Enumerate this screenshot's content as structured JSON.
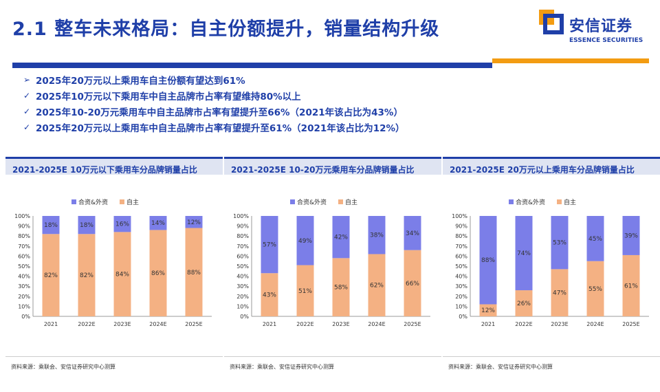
{
  "header": {
    "title": "2.1 整车未来格局：自主份额提升，销量结构升级",
    "logo_cn": "安信证券",
    "logo_en": "ESSENCE SECURITIES"
  },
  "bullets": [
    {
      "marker": "➢",
      "text": "2025年20万元以上乘用车自主份额有望达到61%"
    },
    {
      "marker": "✓",
      "text": "2025年10万元以下乘用车中自主品牌市占率有望维持80%以上"
    },
    {
      "marker": "✓",
      "text": "2025年10-20万元乘用车中自主品牌市占率有望提升至66%（2021年该占比为43%）"
    },
    {
      "marker": "✓",
      "text": "2025年20万元以上乘用车中自主品牌市占率有望提升至61%（2021年该占比为12%）"
    }
  ],
  "colors": {
    "jv": "#7b7ee8",
    "domestic": "#f4b183",
    "brand": "#1f3fa8",
    "accent": "#f39c12"
  },
  "panels": [
    {
      "title": "2021-2025E 10万元以下乘用车分品牌销量占比",
      "source": "资料来源：乘联会、安信证券研究中心测算"
    },
    {
      "title": "2021-2025E 10-20万元乘用车分品牌销量占比",
      "source": "资料来源：乘联会、安信证券研究中心测算"
    },
    {
      "title": "2021-2025E 20万元以上乘用车分品牌销量占比",
      "source": "资料来源：乘联会、安信证券研究中心测算"
    }
  ],
  "chart_data": [
    {
      "type": "bar",
      "stacked": true,
      "categories": [
        "2021",
        "2022E",
        "2023E",
        "2024E",
        "2025E"
      ],
      "series": [
        {
          "name": "自主",
          "values": [
            82,
            82,
            84,
            86,
            88
          ]
        },
        {
          "name": "合资&外资",
          "values": [
            18,
            18,
            16,
            14,
            12
          ]
        }
      ],
      "legend": [
        "合资&外资",
        "自主"
      ],
      "ylim": [
        0,
        100
      ],
      "yticks": [
        "0%",
        "10%",
        "20%",
        "30%",
        "40%",
        "50%",
        "60%",
        "70%",
        "80%",
        "90%",
        "100%"
      ],
      "legend_position": "top"
    },
    {
      "type": "bar",
      "stacked": true,
      "categories": [
        "2021",
        "2022E",
        "2023E",
        "2024E",
        "2025E"
      ],
      "series": [
        {
          "name": "自主",
          "values": [
            43,
            51,
            58,
            62,
            66
          ]
        },
        {
          "name": "合资&外资",
          "values": [
            57,
            49,
            42,
            38,
            34
          ]
        }
      ],
      "legend": [
        "合资&外资",
        "自主"
      ],
      "ylim": [
        0,
        100
      ],
      "yticks": [
        "0%",
        "10%",
        "20%",
        "30%",
        "40%",
        "50%",
        "60%",
        "70%",
        "80%",
        "90%",
        "100%"
      ],
      "legend_position": "top"
    },
    {
      "type": "bar",
      "stacked": true,
      "categories": [
        "2021",
        "2022E",
        "2023E",
        "2024E",
        "2025E"
      ],
      "series": [
        {
          "name": "自主",
          "values": [
            12,
            26,
            47,
            55,
            61
          ]
        },
        {
          "name": "合资&外资",
          "values": [
            88,
            74,
            53,
            45,
            39
          ]
        }
      ],
      "legend": [
        "合资&外资",
        "自主"
      ],
      "ylim": [
        0,
        100
      ],
      "yticks": [
        "0%",
        "10%",
        "20%",
        "30%",
        "40%",
        "50%",
        "60%",
        "70%",
        "80%",
        "90%",
        "100%"
      ],
      "legend_position": "top"
    }
  ]
}
